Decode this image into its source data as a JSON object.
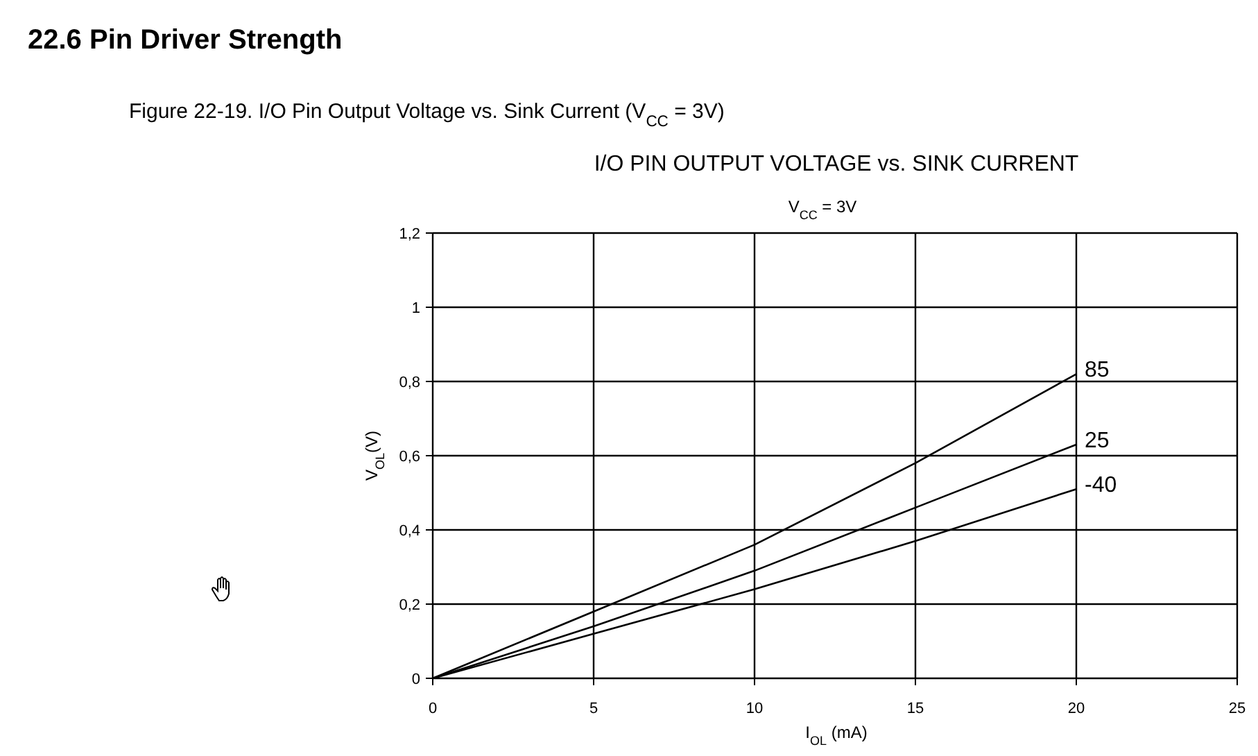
{
  "chart_data": {
    "type": "line",
    "title": "I/O PIN OUTPUT VOLTAGE vs. SINK CURRENT",
    "subtitle": "V$_{CC}$ = 3V",
    "xlabel": "I$_{OL}$ (mA)",
    "ylabel": "V$_{OL}$(V)",
    "annotations": [
      "22.6   Pin Driver Strength",
      "Figure 22-19. I/O Pin Output Voltage vs. Sink Current (V$_{CC}$ = 3V)"
    ],
    "x": [
      0,
      5,
      10,
      15,
      20
    ],
    "series": [
      {
        "name": "85",
        "color": "#000000",
        "values": [
          0,
          0.18,
          0.36,
          0.58,
          0.82
        ]
      },
      {
        "name": "25",
        "color": "#000000",
        "values": [
          0,
          0.14,
          0.29,
          0.46,
          0.63
        ]
      },
      {
        "name": "-40",
        "color": "#000000",
        "values": [
          0,
          0.12,
          0.24,
          0.37,
          0.51
        ]
      }
    ],
    "xlim": [
      0,
      25
    ],
    "xticks": [
      0,
      5,
      10,
      15,
      20,
      25
    ],
    "ylim": [
      0,
      1.2
    ],
    "yticks": [
      0,
      {
        "value": 0.2,
        "label": "0,2"
      },
      {
        "value": 0.4,
        "label": "0,4"
      },
      {
        "value": 0.6,
        "label": "0,6"
      },
      {
        "value": 0.8,
        "label": "0,8"
      },
      1,
      {
        "value": 1.2,
        "label": "1,2"
      }
    ],
    "grid": true,
    "marker": "none",
    "line_style": "solid"
  }
}
